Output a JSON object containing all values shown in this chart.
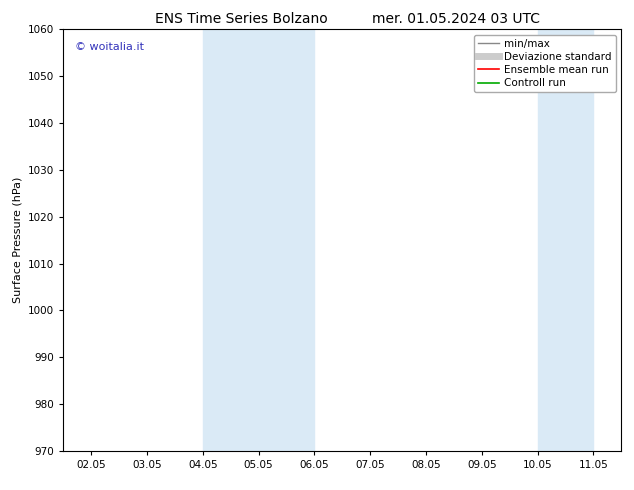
{
  "title_left": "ENS Time Series Bolzano",
  "title_right": "mer. 01.05.2024 03 UTC",
  "ylabel": "Surface Pressure (hPa)",
  "ylim": [
    970,
    1060
  ],
  "yticks": [
    970,
    980,
    990,
    1000,
    1010,
    1020,
    1030,
    1040,
    1050,
    1060
  ],
  "xlabels": [
    "02.05",
    "03.05",
    "04.05",
    "05.05",
    "06.05",
    "07.05",
    "08.05",
    "09.05",
    "10.05",
    "11.05"
  ],
  "x_positions": [
    0,
    1,
    2,
    3,
    4,
    5,
    6,
    7,
    8,
    9
  ],
  "shade_bands": [
    {
      "xmin": 2.0,
      "xmax": 4.0,
      "color": "#daeaf6"
    },
    {
      "xmin": 8.0,
      "xmax": 9.0,
      "color": "#daeaf6"
    }
  ],
  "watermark": "© woitalia.it",
  "watermark_color": "#3333bb",
  "background_color": "#ffffff",
  "plot_bg_color": "#ffffff",
  "legend_entries": [
    {
      "label": "min/max",
      "color": "#888888",
      "lw": 1.0,
      "type": "line"
    },
    {
      "label": "Deviazione standard",
      "color": "#cccccc",
      "lw": 5,
      "type": "line"
    },
    {
      "label": "Ensemble mean run",
      "color": "#ff0000",
      "lw": 1.2,
      "type": "line"
    },
    {
      "label": "Controll run",
      "color": "#00aa00",
      "lw": 1.2,
      "type": "line"
    }
  ],
  "title_fontsize": 10,
  "axis_label_fontsize": 8,
  "tick_fontsize": 7.5,
  "legend_fontsize": 7.5
}
